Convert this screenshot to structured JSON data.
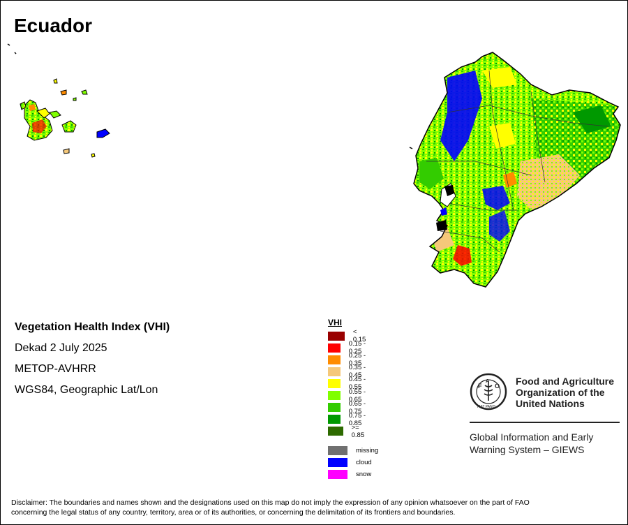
{
  "title": "Ecuador",
  "info": {
    "line1": "Vegetation Health Index (VHI)",
    "line2": "Dekad 2 July 2025",
    "line3": "METOP-AVHRR",
    "line4": "WGS84, Geographic Lat/Lon"
  },
  "legend": {
    "title": "VHI",
    "classes": [
      {
        "label": "< 0.15",
        "color": "#990000"
      },
      {
        "label": "0.15 - 0.25",
        "color": "#ff0000"
      },
      {
        "label": "0.25 - 0.35",
        "color": "#ff8c00"
      },
      {
        "label": "0.35 - 0.45",
        "color": "#f5c87a"
      },
      {
        "label": "0.45 - 0.55",
        "color": "#ffff00"
      },
      {
        "label": "0.55 - 0.65",
        "color": "#80ff00"
      },
      {
        "label": "0.65 - 0.75",
        "color": "#33cc00"
      },
      {
        "label": "0.75 - 0.85",
        "color": "#009900"
      },
      {
        "label": ">= 0.85",
        "color": "#2d6a00"
      }
    ],
    "special": [
      {
        "label": "missing",
        "color": "#707070"
      },
      {
        "label": "cloud",
        "color": "#0000ff"
      },
      {
        "label": "snow",
        "color": "#ff00ff"
      }
    ]
  },
  "logo": {
    "org_line1": "Food and Agriculture",
    "org_line2": "Organization of the",
    "org_line3": "United Nations",
    "letters": "FAO",
    "motto": "FIAT PANIS",
    "system_line1": "Global Information and Early",
    "system_line2": "Warning System – GIEWS"
  },
  "disclaimer_line1": "Disclaimer: The boundaries and names shown and the designations used on this map do not imply the expression of any opinion whatsoever on the part of FAO",
  "disclaimer_line2": "concerning the legal status of any country, territory, area or of its authorities, or concerning the delimitation of its frontiers and boundaries."
}
